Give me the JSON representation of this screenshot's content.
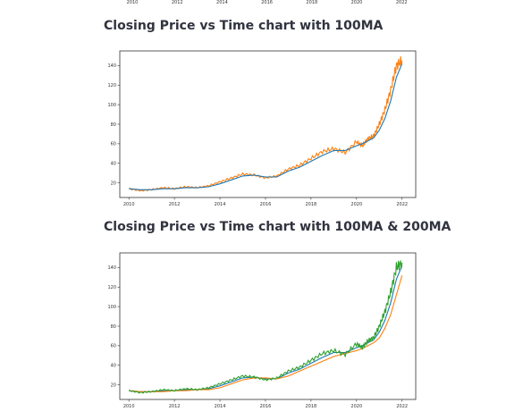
{
  "top_partial_axis": {
    "x_ticks": [
      "2010",
      "2012",
      "2014",
      "2016",
      "2018",
      "2020",
      "2022"
    ]
  },
  "sections": [
    {
      "title": "Closing Price vs Time chart with 100MA"
    },
    {
      "title": "Closing Price vs Time chart with 100MA & 200MA"
    }
  ],
  "chart_data": [
    {
      "type": "line",
      "title": "",
      "xlabel": "",
      "ylabel": "",
      "xlim": [
        2009.6,
        2022.6
      ],
      "ylim": [
        5,
        155
      ],
      "x_ticks": [
        2010,
        2012,
        2014,
        2016,
        2018,
        2020,
        2022
      ],
      "y_ticks": [
        20,
        40,
        60,
        80,
        100,
        120,
        140
      ],
      "grid": false,
      "legend": "none",
      "x": [
        2010.0,
        2010.5,
        2011.0,
        2011.5,
        2012.0,
        2012.5,
        2013.0,
        2013.5,
        2014.0,
        2014.5,
        2015.0,
        2015.5,
        2016.0,
        2016.5,
        2017.0,
        2017.5,
        2018.0,
        2018.5,
        2019.0,
        2019.5,
        2020.0,
        2020.25,
        2020.5,
        2020.75,
        2021.0,
        2021.25,
        2021.5,
        2021.75,
        2022.0
      ],
      "series": [
        {
          "color": "#ff7f0e",
          "role": "closing",
          "values": [
            14,
            12,
            13,
            15,
            14,
            16,
            15,
            17,
            21,
            25,
            29,
            28,
            25,
            27,
            34,
            38,
            45,
            52,
            55,
            51,
            62,
            58,
            65,
            68,
            80,
            95,
            115,
            140,
            145
          ]
        },
        {
          "color": "#1f77b4",
          "role": "ma100",
          "values": [
            14,
            13,
            13,
            14,
            14,
            15,
            15,
            16,
            19,
            23,
            27,
            28,
            26,
            26,
            32,
            36,
            42,
            48,
            53,
            53,
            58,
            60,
            63,
            66,
            74,
            86,
            104,
            128,
            142
          ]
        }
      ]
    },
    {
      "type": "line",
      "title": "",
      "xlabel": "",
      "ylabel": "",
      "xlim": [
        2009.6,
        2022.6
      ],
      "ylim": [
        5,
        155
      ],
      "x_ticks": [
        2010,
        2012,
        2014,
        2016,
        2018,
        2020,
        2022
      ],
      "y_ticks": [
        20,
        40,
        60,
        80,
        100,
        120,
        140
      ],
      "grid": false,
      "legend": "none",
      "x": [
        2010.0,
        2010.5,
        2011.0,
        2011.5,
        2012.0,
        2012.5,
        2013.0,
        2013.5,
        2014.0,
        2014.5,
        2015.0,
        2015.5,
        2016.0,
        2016.5,
        2017.0,
        2017.5,
        2018.0,
        2018.5,
        2019.0,
        2019.5,
        2020.0,
        2020.25,
        2020.5,
        2020.75,
        2021.0,
        2021.25,
        2021.5,
        2021.75,
        2022.0
      ],
      "series": [
        {
          "color": "#1f77b4",
          "role": "ma100",
          "values": [
            14,
            13,
            13,
            14,
            14,
            15,
            15,
            16,
            19,
            23,
            27,
            28,
            26,
            26,
            32,
            36,
            42,
            48,
            53,
            53,
            58,
            60,
            63,
            66,
            74,
            86,
            104,
            128,
            142
          ]
        },
        {
          "color": "#ff7f0e",
          "role": "ma200",
          "values": [
            14,
            13,
            13,
            13,
            14,
            14,
            15,
            15,
            17,
            21,
            25,
            27,
            27,
            26,
            29,
            34,
            39,
            44,
            49,
            52,
            55,
            57,
            60,
            63,
            68,
            78,
            92,
            112,
            132
          ]
        },
        {
          "color": "#2ca02c",
          "role": "closing",
          "values": [
            14,
            12,
            13,
            15,
            14,
            16,
            15,
            17,
            21,
            25,
            29,
            28,
            25,
            27,
            34,
            38,
            45,
            52,
            55,
            51,
            62,
            58,
            65,
            68,
            80,
            95,
            115,
            140,
            145
          ]
        }
      ]
    }
  ]
}
